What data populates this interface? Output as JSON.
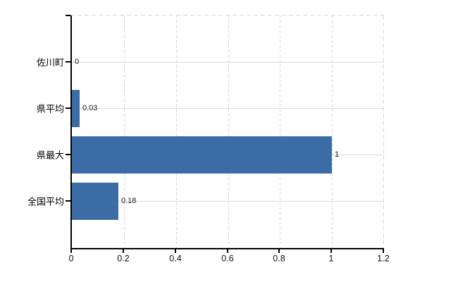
{
  "chart_data": {
    "type": "bar",
    "orientation": "horizontal",
    "title": "",
    "xlabel": "",
    "ylabel": "",
    "categories": [
      "佐川町",
      "県平均",
      "県最大",
      "全国平均"
    ],
    "values": [
      0,
      0.03,
      1,
      0.18
    ],
    "value_labels": [
      "0",
      "0.03",
      "1",
      "0.18"
    ],
    "xlim": [
      0,
      1.2
    ],
    "xticks": [
      0,
      0.2,
      0.4,
      0.6,
      0.8,
      1,
      1.2
    ],
    "xtick_labels": [
      "0",
      "0.2",
      "0.4",
      "0.6",
      "0.8",
      "1",
      "1.2"
    ],
    "grid": "vertical dashed at x ticks, horizontal solid at category centers",
    "legend": false,
    "colors": {
      "bar": "#3c6ca6",
      "axis": "#000000",
      "grid_horizontal": "#d7dcd3",
      "grid_vertical": "#d6d6d6",
      "plot_border_dashed": "#d4d4d4",
      "category_text": "#000000",
      "tick_text": "#111111",
      "value_text": "#1a1a1a",
      "background": "#ffffff"
    }
  }
}
